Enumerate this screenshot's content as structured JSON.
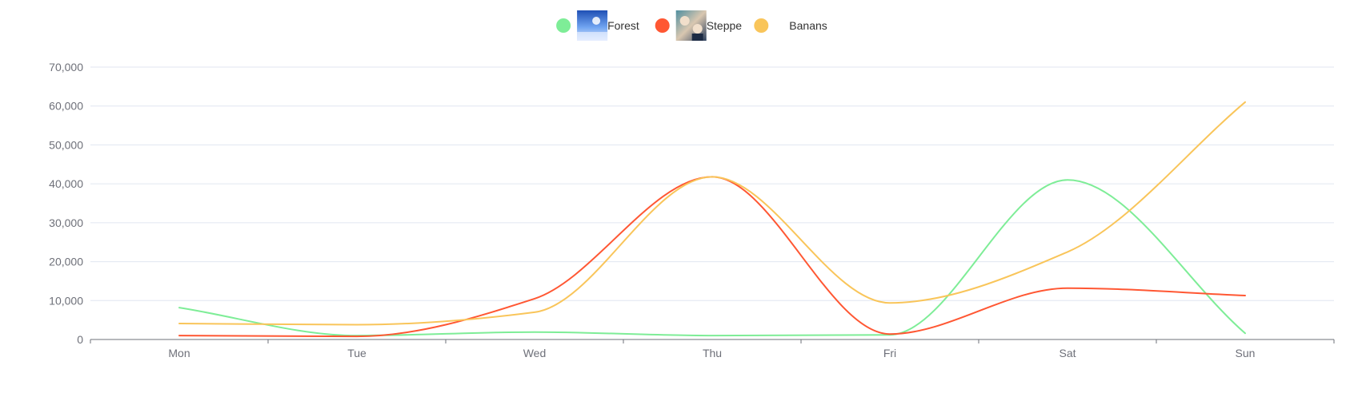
{
  "chart_data": {
    "type": "line",
    "smooth": true,
    "categories": [
      "Mon",
      "Tue",
      "Wed",
      "Thu",
      "Fri",
      "Sat",
      "Sun"
    ],
    "ylim": [
      0,
      70000
    ],
    "yticks": [
      0,
      10000,
      20000,
      30000,
      40000,
      50000,
      60000,
      70000
    ],
    "ytick_labels": [
      "0",
      "10,000",
      "20,000",
      "30,000",
      "40,000",
      "50,000",
      "60,000",
      "70,000"
    ],
    "grid": true,
    "legend_position": "top-center",
    "series": [
      {
        "name": "Forest",
        "color": "#7eed97",
        "icon": "forest-photo-icon",
        "values": [
          8200,
          1000,
          1900,
          1000,
          1200,
          41000,
          1600
        ]
      },
      {
        "name": "Steppe",
        "color": "#ff5733",
        "icon": "steppe-photo-icon",
        "values": [
          1000,
          800,
          10500,
          41800,
          1400,
          13200,
          11300
        ]
      },
      {
        "name": "Banans",
        "color": "#f9c55a",
        "icon": "",
        "values": [
          4100,
          3800,
          7000,
          41800,
          9400,
          22500,
          61000
        ]
      }
    ]
  }
}
